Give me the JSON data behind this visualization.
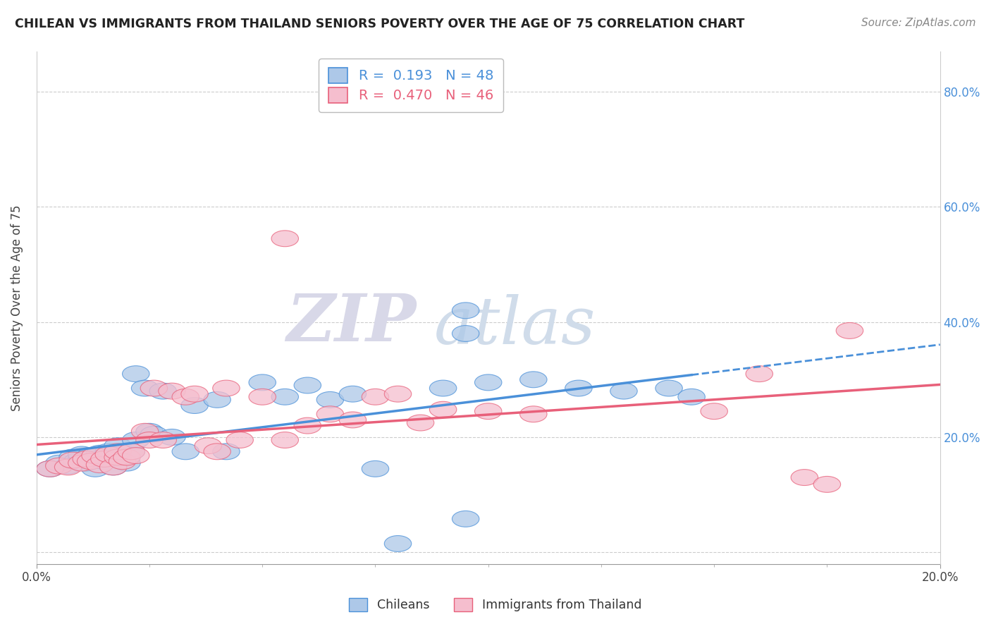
{
  "title": "CHILEAN VS IMMIGRANTS FROM THAILAND SENIORS POVERTY OVER THE AGE OF 75 CORRELATION CHART",
  "source": "Source: ZipAtlas.com",
  "ylabel": "Seniors Poverty Over the Age of 75",
  "R_chilean": 0.193,
  "N_chilean": 48,
  "R_thailand": 0.47,
  "N_thailand": 46,
  "color_chilean": "#adc8e8",
  "color_thailand": "#f5bece",
  "line_color_chilean": "#4a90d9",
  "line_color_thailand": "#e8607a",
  "xlim": [
    0.0,
    0.2
  ],
  "ylim": [
    -0.02,
    0.87
  ],
  "yticks": [
    0.0,
    0.2,
    0.4,
    0.6,
    0.8
  ],
  "ytick_labels": [
    "",
    "20.0%",
    "40.0%",
    "60.0%",
    "80.0%"
  ],
  "xticks": [
    0.0,
    0.2
  ],
  "xtick_labels": [
    "0.0%",
    "20.0%"
  ],
  "watermark_zip": "ZIP",
  "watermark_atlas": "atlas",
  "chilean_x": [
    0.003,
    0.005,
    0.007,
    0.008,
    0.009,
    0.01,
    0.01,
    0.011,
    0.012,
    0.013,
    0.014,
    0.015,
    0.016,
    0.016,
    0.017,
    0.018,
    0.018,
    0.019,
    0.02,
    0.021,
    0.022,
    0.022,
    0.024,
    0.025,
    0.026,
    0.028,
    0.03,
    0.033,
    0.035,
    0.04,
    0.042,
    0.05,
    0.055,
    0.06,
    0.065,
    0.07,
    0.075,
    0.08,
    0.09,
    0.095,
    0.1,
    0.11,
    0.12,
    0.13,
    0.095,
    0.095,
    0.14,
    0.145
  ],
  "chilean_y": [
    0.145,
    0.155,
    0.15,
    0.165,
    0.158,
    0.162,
    0.17,
    0.155,
    0.168,
    0.145,
    0.172,
    0.158,
    0.162,
    0.175,
    0.148,
    0.168,
    0.185,
    0.165,
    0.155,
    0.175,
    0.31,
    0.195,
    0.285,
    0.21,
    0.205,
    0.28,
    0.2,
    0.175,
    0.255,
    0.265,
    0.175,
    0.295,
    0.27,
    0.29,
    0.265,
    0.275,
    0.145,
    0.015,
    0.285,
    0.058,
    0.295,
    0.3,
    0.285,
    0.28,
    0.42,
    0.38,
    0.285,
    0.27
  ],
  "thailand_x": [
    0.003,
    0.005,
    0.007,
    0.008,
    0.01,
    0.011,
    0.012,
    0.013,
    0.014,
    0.015,
    0.016,
    0.017,
    0.018,
    0.018,
    0.019,
    0.02,
    0.021,
    0.022,
    0.024,
    0.025,
    0.026,
    0.028,
    0.03,
    0.033,
    0.035,
    0.038,
    0.04,
    0.042,
    0.045,
    0.05,
    0.055,
    0.06,
    0.065,
    0.07,
    0.075,
    0.08,
    0.085,
    0.09,
    0.1,
    0.11,
    0.055,
    0.15,
    0.16,
    0.17,
    0.175,
    0.18
  ],
  "thailand_y": [
    0.145,
    0.15,
    0.148,
    0.16,
    0.155,
    0.162,
    0.158,
    0.168,
    0.152,
    0.162,
    0.17,
    0.148,
    0.165,
    0.175,
    0.158,
    0.165,
    0.175,
    0.168,
    0.21,
    0.195,
    0.285,
    0.195,
    0.28,
    0.27,
    0.275,
    0.185,
    0.175,
    0.285,
    0.195,
    0.27,
    0.195,
    0.22,
    0.24,
    0.23,
    0.27,
    0.275,
    0.225,
    0.248,
    0.245,
    0.24,
    0.545,
    0.245,
    0.31,
    0.13,
    0.118,
    0.385
  ]
}
